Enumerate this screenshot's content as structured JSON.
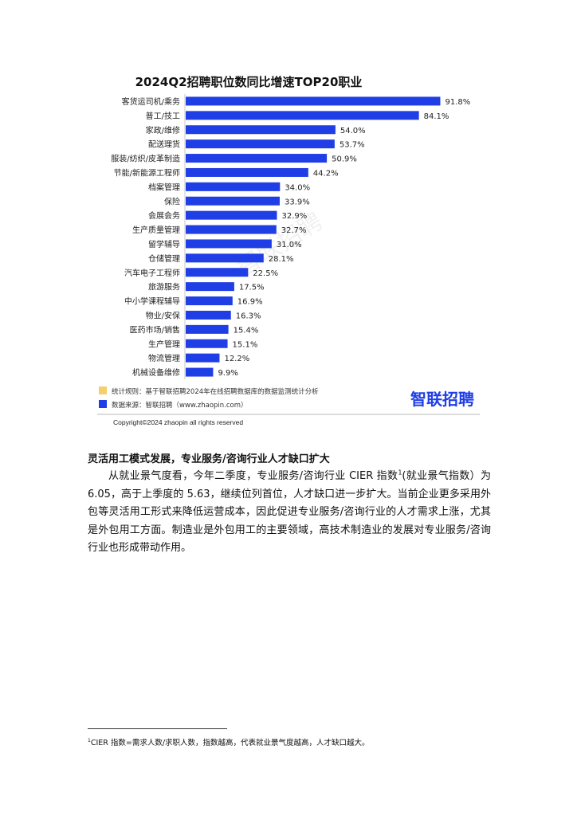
{
  "chart_data": {
    "type": "bar",
    "orientation": "horizontal",
    "title": "2024Q2招聘职位数同比增速TOP20职业",
    "categories": [
      "客货运司机/乘务",
      "普工/技工",
      "家政/维修",
      "配送理货",
      "服装/纺织/皮革制造",
      "节能/新能源工程师",
      "档案管理",
      "保险",
      "会展会务",
      "生产质量管理",
      "留学辅导",
      "仓储管理",
      "汽车电子工程师",
      "旅游服务",
      "中小学课程辅导",
      "物业/安保",
      "医药市场/销售",
      "生产管理",
      "物流管理",
      "机械设备维修"
    ],
    "values": [
      91.8,
      84.1,
      54.0,
      53.7,
      50.9,
      44.2,
      34.0,
      33.9,
      32.9,
      32.7,
      31.0,
      28.1,
      22.5,
      17.5,
      16.9,
      16.3,
      15.4,
      15.1,
      12.2,
      9.9
    ],
    "labels": [
      "91.8%",
      "84.1%",
      "54.0%",
      "53.7%",
      "50.9%",
      "44.2%",
      "34.0%",
      "33.9%",
      "32.9%",
      "32.7%",
      "31.0%",
      "28.1%",
      "22.5%",
      "17.5%",
      "16.9%",
      "16.3%",
      "15.4%",
      "15.1%",
      "12.2%",
      "9.9%"
    ],
    "unit": "%",
    "xlim": [
      0,
      100
    ],
    "grid": false,
    "bar_color": "#1f3ee6",
    "legend": [
      {
        "text": "统计规则：基于智联招聘2024年在线招聘数据库的数据监测统计分析",
        "color": "#f5cf6e"
      },
      {
        "text": "数据来源：智联招聘（www.zhaopin.com）",
        "color": "#1f3ee6"
      }
    ],
    "legend_position": "bottom-left",
    "logo_text": "智联招聘",
    "watermark_text": "智联招聘"
  },
  "copyright": "Copyright©2024 zhaopin all rights reserved",
  "section": {
    "title": "灵活用工模式发展，专业服务/咨询行业人才缺口扩大",
    "para_before_sup": "从就业景气度看，今年二季度，专业服务/咨询行业 CIER 指数",
    "sup_mark": "1",
    "para_after_sup": "(就业景气指数）为 6.05，高于上季度的 5.63，继续位列首位，人才缺口进一步扩大。当前企业更多采用外包等灵活用工形式来降低运营成本，因此促进专业服务/咨询行业的人才需求上涨，尤其是外包用工方面。制造业是外包用工的主要领域，高技术制造业的发展对专业服务/咨询行业也形成带动作用。"
  },
  "footnote": {
    "mark": "1",
    "text": "CIER 指数=需求人数/求职人数，指数越高，代表就业景气度越高，人才缺口越大。"
  }
}
